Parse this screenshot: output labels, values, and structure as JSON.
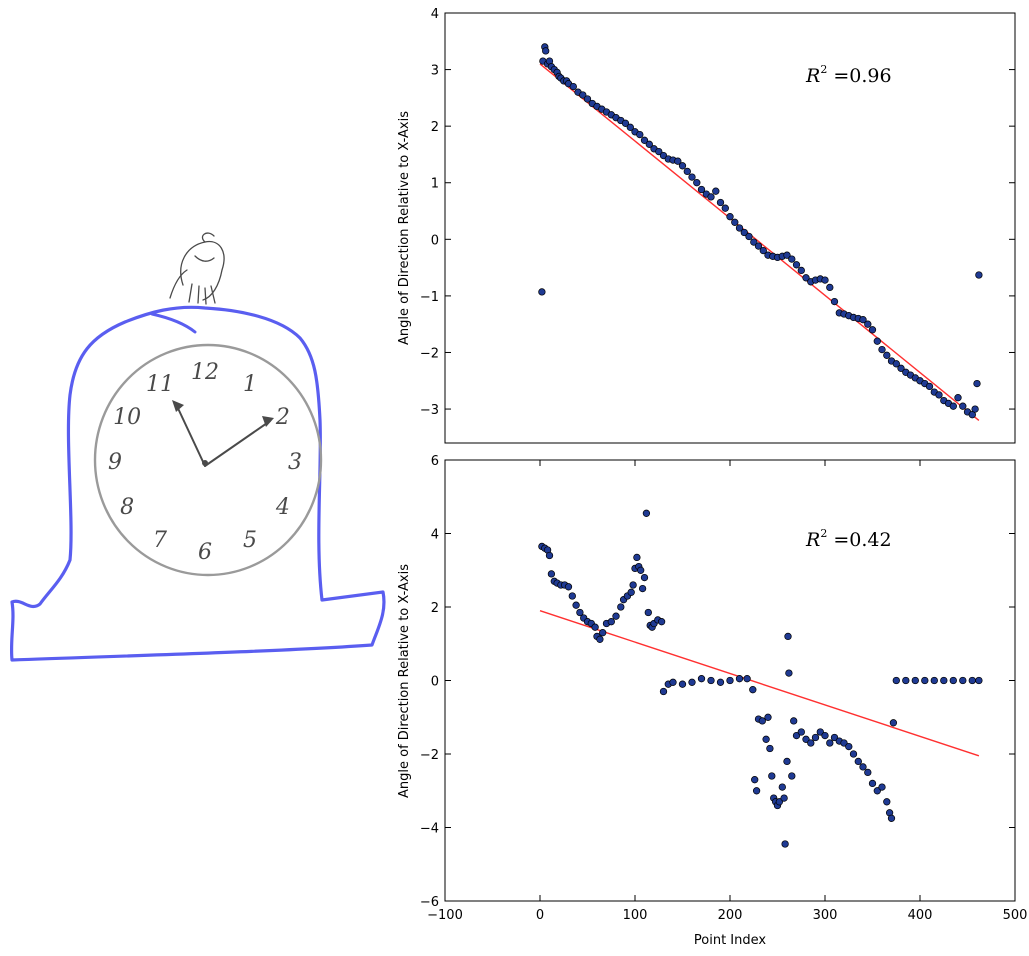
{
  "drawing": {
    "ink_color": "#4a4a4a",
    "case_color": "#5a5ef0",
    "numerals": [
      "12",
      "1",
      "2",
      "3",
      "4",
      "5",
      "6",
      "7",
      "8",
      "9",
      "10",
      "11"
    ]
  },
  "chart_data": [
    {
      "type": "scatter",
      "title": "",
      "xlabel": "",
      "ylabel": "Angle of Direction Relative to X-Axis",
      "xlim": [
        -100,
        500
      ],
      "ylim": [
        -3.6,
        4
      ],
      "xticks": [],
      "yticks": [
        -3,
        -2,
        -1,
        0,
        1,
        2,
        3,
        4
      ],
      "annotation": {
        "symbol": "R",
        "exp": "2",
        "rest": " =0.96"
      },
      "point_color": "#1f3a93",
      "fit_color": "#ff3030",
      "fit_line": {
        "x": [
          0,
          462
        ],
        "y": [
          3.1,
          -3.2
        ]
      },
      "points": [
        [
          2,
          -0.93
        ],
        [
          3,
          3.15
        ],
        [
          5,
          3.4
        ],
        [
          6,
          3.33
        ],
        [
          8,
          3.1
        ],
        [
          10,
          3.15
        ],
        [
          12,
          3.05
        ],
        [
          15,
          3.0
        ],
        [
          18,
          2.95
        ],
        [
          20,
          2.88
        ],
        [
          22,
          2.85
        ],
        [
          25,
          2.8
        ],
        [
          28,
          2.8
        ],
        [
          30,
          2.75
        ],
        [
          35,
          2.7
        ],
        [
          40,
          2.6
        ],
        [
          45,
          2.55
        ],
        [
          50,
          2.48
        ],
        [
          55,
          2.4
        ],
        [
          60,
          2.35
        ],
        [
          65,
          2.3
        ],
        [
          70,
          2.25
        ],
        [
          75,
          2.2
        ],
        [
          80,
          2.15
        ],
        [
          85,
          2.1
        ],
        [
          90,
          2.05
        ],
        [
          95,
          1.98
        ],
        [
          100,
          1.9
        ],
        [
          105,
          1.85
        ],
        [
          110,
          1.75
        ],
        [
          115,
          1.68
        ],
        [
          120,
          1.6
        ],
        [
          125,
          1.55
        ],
        [
          130,
          1.48
        ],
        [
          135,
          1.42
        ],
        [
          140,
          1.4
        ],
        [
          145,
          1.38
        ],
        [
          150,
          1.3
        ],
        [
          155,
          1.2
        ],
        [
          160,
          1.1
        ],
        [
          165,
          1.0
        ],
        [
          170,
          0.88
        ],
        [
          175,
          0.8
        ],
        [
          180,
          0.75
        ],
        [
          185,
          0.85
        ],
        [
          190,
          0.65
        ],
        [
          195,
          0.55
        ],
        [
          200,
          0.4
        ],
        [
          205,
          0.3
        ],
        [
          210,
          0.2
        ],
        [
          215,
          0.12
        ],
        [
          220,
          0.05
        ],
        [
          225,
          -0.05
        ],
        [
          230,
          -0.12
        ],
        [
          235,
          -0.2
        ],
        [
          240,
          -0.28
        ],
        [
          245,
          -0.3
        ],
        [
          250,
          -0.32
        ],
        [
          255,
          -0.3
        ],
        [
          260,
          -0.28
        ],
        [
          265,
          -0.35
        ],
        [
          270,
          -0.45
        ],
        [
          275,
          -0.55
        ],
        [
          280,
          -0.68
        ],
        [
          285,
          -0.75
        ],
        [
          290,
          -0.72
        ],
        [
          295,
          -0.7
        ],
        [
          300,
          -0.72
        ],
        [
          305,
          -0.85
        ],
        [
          310,
          -1.1
        ],
        [
          315,
          -1.3
        ],
        [
          320,
          -1.32
        ],
        [
          325,
          -1.35
        ],
        [
          330,
          -1.38
        ],
        [
          335,
          -1.4
        ],
        [
          340,
          -1.42
        ],
        [
          345,
          -1.5
        ],
        [
          350,
          -1.6
        ],
        [
          355,
          -1.8
        ],
        [
          360,
          -1.95
        ],
        [
          365,
          -2.05
        ],
        [
          370,
          -2.15
        ],
        [
          375,
          -2.2
        ],
        [
          380,
          -2.28
        ],
        [
          385,
          -2.35
        ],
        [
          390,
          -2.4
        ],
        [
          395,
          -2.45
        ],
        [
          400,
          -2.5
        ],
        [
          405,
          -2.55
        ],
        [
          410,
          -2.6
        ],
        [
          415,
          -2.7
        ],
        [
          420,
          -2.75
        ],
        [
          425,
          -2.85
        ],
        [
          430,
          -2.9
        ],
        [
          435,
          -2.95
        ],
        [
          440,
          -2.8
        ],
        [
          445,
          -2.95
        ],
        [
          450,
          -3.05
        ],
        [
          455,
          -3.1
        ],
        [
          458,
          -3.0
        ],
        [
          460,
          -2.55
        ],
        [
          462,
          -0.63
        ]
      ]
    },
    {
      "type": "scatter",
      "title": "",
      "xlabel": "Point Index",
      "ylabel": "Angle of Direction Relative to X-Axis",
      "xlim": [
        -100,
        500
      ],
      "ylim": [
        -6,
        6
      ],
      "xticks": [
        -100,
        0,
        100,
        200,
        300,
        400,
        500
      ],
      "yticks": [
        -6,
        -4,
        -2,
        0,
        2,
        4,
        6
      ],
      "annotation": {
        "symbol": "R",
        "exp": "2",
        "rest": " =0.42"
      },
      "point_color": "#1f3a93",
      "fit_color": "#ff3030",
      "fit_line": {
        "x": [
          0,
          462
        ],
        "y": [
          1.9,
          -2.05
        ]
      },
      "points": [
        [
          2,
          3.65
        ],
        [
          5,
          3.6
        ],
        [
          8,
          3.55
        ],
        [
          10,
          3.4
        ],
        [
          12,
          2.9
        ],
        [
          15,
          2.7
        ],
        [
          18,
          2.65
        ],
        [
          22,
          2.6
        ],
        [
          26,
          2.6
        ],
        [
          30,
          2.55
        ],
        [
          34,
          2.3
        ],
        [
          38,
          2.05
        ],
        [
          42,
          1.85
        ],
        [
          46,
          1.7
        ],
        [
          50,
          1.6
        ],
        [
          54,
          1.55
        ],
        [
          58,
          1.45
        ],
        [
          60,
          1.2
        ],
        [
          63,
          1.12
        ],
        [
          66,
          1.3
        ],
        [
          70,
          1.55
        ],
        [
          75,
          1.6
        ],
        [
          80,
          1.75
        ],
        [
          85,
          2.0
        ],
        [
          88,
          2.2
        ],
        [
          92,
          2.3
        ],
        [
          96,
          2.4
        ],
        [
          98,
          2.6
        ],
        [
          100,
          3.05
        ],
        [
          102,
          3.35
        ],
        [
          104,
          3.1
        ],
        [
          106,
          3.0
        ],
        [
          108,
          2.5
        ],
        [
          110,
          2.8
        ],
        [
          112,
          4.55
        ],
        [
          114,
          1.85
        ],
        [
          116,
          1.5
        ],
        [
          118,
          1.45
        ],
        [
          120,
          1.55
        ],
        [
          124,
          1.65
        ],
        [
          128,
          1.6
        ],
        [
          130,
          -0.3
        ],
        [
          135,
          -0.1
        ],
        [
          140,
          -0.05
        ],
        [
          150,
          -0.1
        ],
        [
          160,
          -0.05
        ],
        [
          170,
          0.05
        ],
        [
          180,
          0.0
        ],
        [
          190,
          -0.05
        ],
        [
          200,
          0.0
        ],
        [
          210,
          0.05
        ],
        [
          218,
          0.05
        ],
        [
          224,
          -0.25
        ],
        [
          226,
          -2.7
        ],
        [
          228,
          -3.0
        ],
        [
          230,
          -1.05
        ],
        [
          234,
          -1.1
        ],
        [
          238,
          -1.6
        ],
        [
          240,
          -1.0
        ],
        [
          242,
          -1.85
        ],
        [
          244,
          -2.6
        ],
        [
          246,
          -3.2
        ],
        [
          248,
          -3.3
        ],
        [
          250,
          -3.4
        ],
        [
          252,
          -3.3
        ],
        [
          255,
          -2.9
        ],
        [
          257,
          -3.2
        ],
        [
          258,
          -4.45
        ],
        [
          260,
          -2.2
        ],
        [
          261,
          1.2
        ],
        [
          262,
          0.2
        ],
        [
          265,
          -2.6
        ],
        [
          267,
          -1.1
        ],
        [
          270,
          -1.5
        ],
        [
          275,
          -1.4
        ],
        [
          280,
          -1.6
        ],
        [
          285,
          -1.7
        ],
        [
          290,
          -1.55
        ],
        [
          295,
          -1.4
        ],
        [
          300,
          -1.5
        ],
        [
          305,
          -1.7
        ],
        [
          310,
          -1.55
        ],
        [
          315,
          -1.65
        ],
        [
          320,
          -1.7
        ],
        [
          325,
          -1.8
        ],
        [
          330,
          -2.0
        ],
        [
          335,
          -2.2
        ],
        [
          340,
          -2.35
        ],
        [
          345,
          -2.5
        ],
        [
          350,
          -2.8
        ],
        [
          355,
          -3.0
        ],
        [
          360,
          -2.9
        ],
        [
          365,
          -3.3
        ],
        [
          368,
          -3.6
        ],
        [
          370,
          -3.75
        ],
        [
          372,
          -1.15
        ],
        [
          375,
          0.0
        ],
        [
          385,
          0.0
        ],
        [
          395,
          0.0
        ],
        [
          405,
          0.0
        ],
        [
          415,
          0.0
        ],
        [
          425,
          0.0
        ],
        [
          435,
          0.0
        ],
        [
          445,
          0.0
        ],
        [
          455,
          0.0
        ],
        [
          462,
          0.0
        ]
      ]
    }
  ]
}
